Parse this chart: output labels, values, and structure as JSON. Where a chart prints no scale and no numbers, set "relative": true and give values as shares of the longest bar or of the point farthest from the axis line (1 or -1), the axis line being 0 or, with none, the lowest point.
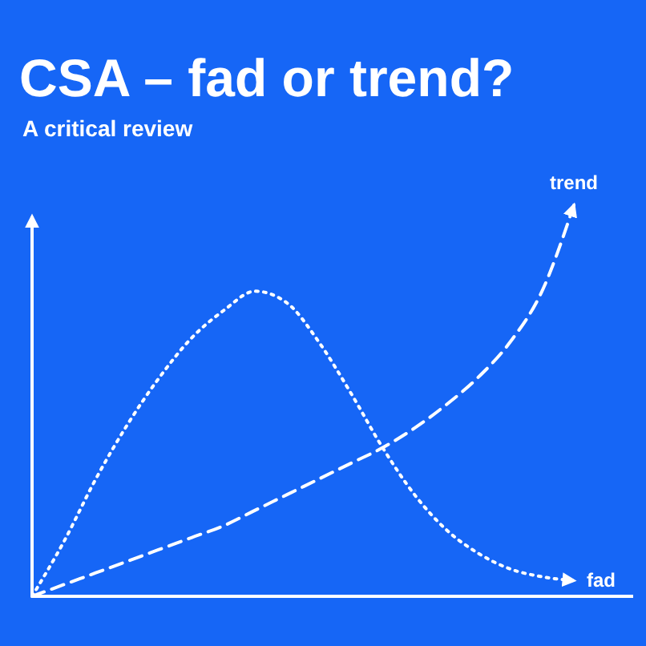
{
  "chart_data": {
    "type": "line",
    "title": "CSA – fad or trend?",
    "subtitle": "A critical review",
    "relative": true,
    "marker": "none",
    "legend": false,
    "categories": [
      null,
      null,
      null,
      null,
      null,
      null,
      null,
      null,
      null,
      null,
      null,
      null,
      null,
      null,
      null,
      null,
      null,
      null
    ],
    "series": [
      {
        "name": "trend",
        "color": "#ffffff",
        "line_style": "dashed",
        "values": [
          0,
          0.03,
          0.06,
          0.09,
          0.12,
          0.15,
          0.18,
          0.22,
          0.26,
          0.3,
          0.34,
          0.38,
          0.43,
          0.49,
          0.56,
          0.65,
          0.78,
          1
        ]
      },
      {
        "name": "fad",
        "color": "#ffffff",
        "line_style": "dotted",
        "values": [
          0,
          0.14,
          0.3,
          0.44,
          0.56,
          0.66,
          0.73,
          0.78,
          0.75,
          0.65,
          0.52,
          0.38,
          0.26,
          0.17,
          0.11,
          0.07,
          0.05,
          0.04
        ]
      }
    ]
  }
}
